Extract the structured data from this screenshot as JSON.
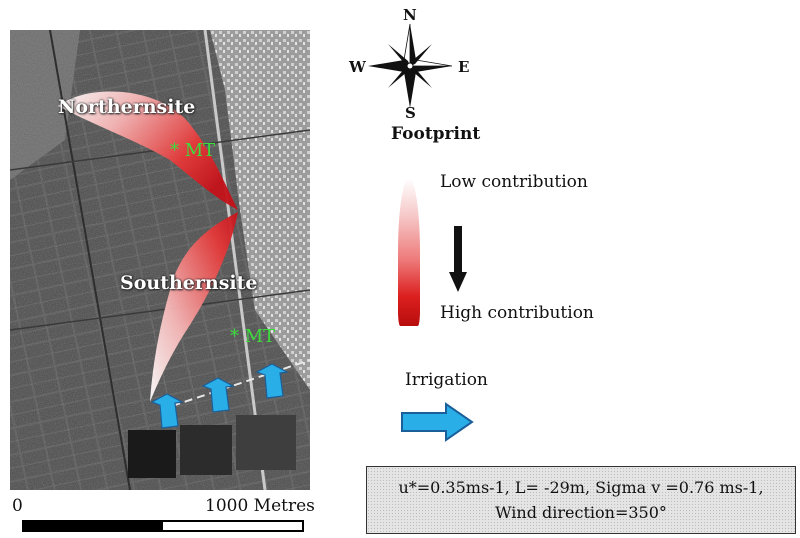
{
  "map": {
    "northern_site_label": "Northernsite",
    "southern_site_label": "Southernsite",
    "mt_label_north": "* MT",
    "mt_label_south": "* MT",
    "scale": {
      "start_label": "0",
      "end_label": "1000 Metres"
    }
  },
  "compass": {
    "north": "N",
    "south": "S",
    "east": "E",
    "west": "W"
  },
  "legend": {
    "title": "Footprint",
    "low_label": "Low contribution",
    "high_label": "High contribution",
    "low_color": "#ffffff",
    "high_color": "#c0101a",
    "irrigation_label": "Irrigation",
    "irrigation_color": "#2aaee8"
  },
  "parameters": {
    "line1": "u*=0.35ms-1, L= -29m, Sigma v =0.76 ms-1,",
    "line2": "Wind direction=350°"
  },
  "colors": {
    "mt_green": "#3ddc3d",
    "footprint_red": "#e02020"
  }
}
